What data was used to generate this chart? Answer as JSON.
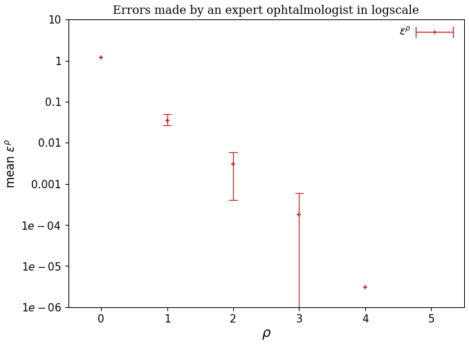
{
  "title": "Errors made by an expert ophtalmologist in logscale",
  "xlabel": "$\\rho$",
  "ylabel": "mean $\\epsilon^\\rho$",
  "legend_label": "$\\epsilon^{\\rho}$",
  "color": "#cc2222",
  "x": [
    0,
    1,
    2,
    3,
    4
  ],
  "y": [
    1.2,
    0.035,
    0.003,
    0.00018,
    3e-06
  ],
  "y_upper": [
    1.2,
    0.05,
    0.006,
    0.0006,
    3e-06
  ],
  "y_lower": [
    1.2,
    0.027,
    0.0004,
    1e-06,
    3e-06
  ],
  "xlim": [
    -0.5,
    5.5
  ],
  "ylim_bottom": 1e-06,
  "ylim_top": 10,
  "xticks": [
    0,
    1,
    2,
    3,
    4,
    5
  ],
  "figsize": [
    6.78,
    5.0
  ],
  "dpi": 100
}
